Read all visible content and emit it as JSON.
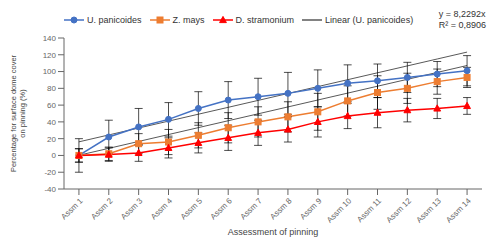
{
  "chart_data": {
    "type": "line",
    "x": [
      1,
      2,
      3,
      4,
      5,
      6,
      7,
      8,
      9,
      10,
      11,
      12,
      13,
      14
    ],
    "xlim": [
      0.5,
      14.5
    ],
    "xticks": [
      {
        "value": 1,
        "label": "Assm 1"
      },
      {
        "value": 2,
        "label": "Assm 2"
      },
      {
        "value": 3,
        "label": "Assm 3"
      },
      {
        "value": 4,
        "label": "Assm 4"
      },
      {
        "value": 5,
        "label": "Assm 5"
      },
      {
        "value": 6,
        "label": "Assm 6"
      },
      {
        "value": 7,
        "label": "Assm 7"
      },
      {
        "value": 8,
        "label": "Assm 8"
      },
      {
        "value": 9,
        "label": "Assm 9"
      },
      {
        "value": 10,
        "label": "Assm 10"
      },
      {
        "value": 11,
        "label": "Assm 11"
      },
      {
        "value": 12,
        "label": "Assm 12"
      },
      {
        "value": 13,
        "label": "Assm 13"
      },
      {
        "value": 14,
        "label": "Assm 14"
      }
    ],
    "xlabel": "Assessment of pinning",
    "ylabel": "Percentage for surface dome cover\non pinning (%)",
    "ylim": [
      -40,
      140
    ],
    "yticks": [
      -40,
      -20,
      0,
      20,
      40,
      60,
      80,
      100,
      120,
      140
    ],
    "grid": false,
    "legend": "upper left",
    "annotations": [
      "y = 8,2292x",
      "R² = 0,8906"
    ],
    "series": [
      {
        "name": "U. panicoides",
        "color": "#4472C4",
        "marker": "circle",
        "values": [
          0,
          22,
          34,
          43,
          56,
          66,
          70,
          74,
          80,
          86,
          89,
          93,
          97,
          101
        ],
        "error": [
          20,
          20,
          22,
          20,
          20,
          22,
          22,
          25,
          22,
          22,
          20,
          18,
          15,
          18
        ]
      },
      {
        "name": "Z. mays",
        "color": "#ED7D31",
        "marker": "square",
        "values": [
          0,
          2,
          14,
          16,
          24,
          33,
          40,
          46,
          52,
          65,
          75,
          80,
          88,
          93
        ],
        "error": [
          8,
          8,
          12,
          15,
          15,
          18,
          18,
          18,
          22,
          18,
          20,
          18,
          15,
          12
        ]
      },
      {
        "name": "D. stramonium",
        "color": "#FF0000",
        "marker": "triangle",
        "values": [
          0,
          1,
          3,
          9,
          15,
          21,
          27,
          31,
          40,
          47,
          51,
          54,
          56,
          59
        ],
        "error": [
          8,
          8,
          10,
          12,
          12,
          15,
          15,
          15,
          18,
          15,
          18,
          14,
          12,
          10
        ]
      },
      {
        "name": "Linear (U. panicoides)",
        "type": "band",
        "color": "#595959",
        "line_style": "solid",
        "upper": [
          16.2292,
          24.4584,
          32.6876,
          40.9168,
          49.146,
          57.3752,
          65.6044,
          73.8336,
          82.0628,
          90.292,
          98.5212,
          106.7504,
          114.9796,
          123.2088
        ],
        "lower": [
          0.2292,
          8.4584,
          16.6876,
          24.9168,
          33.146,
          41.3752,
          49.6044,
          57.8336,
          66.0628,
          74.292,
          82.5212,
          90.7504,
          98.9796,
          107.2088
        ]
      }
    ]
  }
}
